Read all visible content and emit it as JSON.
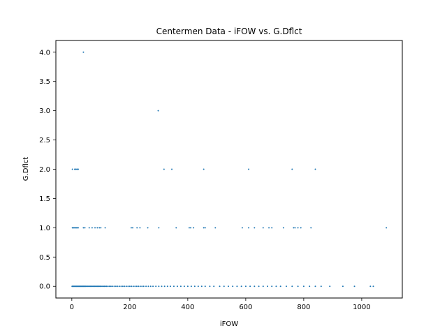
{
  "chart_data": {
    "type": "scatter",
    "title": "Centermen Data - iFOW vs. G.Dflct",
    "xlabel": "iFOW",
    "ylabel": "G.Dflct",
    "xlim": [
      -55,
      1140
    ],
    "ylim": [
      -0.2,
      4.2
    ],
    "xticks": [
      0,
      200,
      400,
      600,
      800,
      1000
    ],
    "yticks": [
      0.0,
      0.5,
      1.0,
      1.5,
      2.0,
      2.5,
      3.0,
      3.5,
      4.0
    ],
    "xtick_labels": [
      "0",
      "200",
      "400",
      "600",
      "800",
      "1000"
    ],
    "ytick_labels": [
      "0.0",
      "0.5",
      "1.0",
      "1.5",
      "2.0",
      "2.5",
      "3.0",
      "3.5",
      "4.0"
    ],
    "grid": false,
    "point_color": "#1f77b4",
    "series": [
      {
        "x": [
          1,
          3,
          5,
          7,
          9,
          11,
          13,
          15,
          17,
          19,
          21,
          23,
          25,
          27,
          29,
          31,
          33,
          35,
          37,
          39,
          41,
          43,
          45,
          47,
          49,
          52,
          55,
          58,
          61,
          64,
          67,
          70,
          73,
          76,
          79,
          82,
          85,
          88,
          91,
          94,
          97,
          100,
          104,
          108,
          112,
          116,
          120,
          125,
          130,
          135,
          140,
          146,
          152,
          158,
          164,
          170,
          176,
          182,
          188,
          194,
          200,
          206,
          212,
          218,
          224,
          230,
          236,
          242,
          248,
          256,
          264,
          272,
          280,
          290,
          300,
          310,
          320,
          330,
          340,
          352,
          364,
          376,
          388,
          400,
          412,
          424,
          436,
          448,
          460,
          476,
          490,
          510,
          525,
          540,
          555,
          570,
          585,
          600,
          615,
          630,
          645,
          660,
          675,
          690,
          705,
          720,
          740,
          760,
          780,
          800,
          820,
          840,
          860,
          890,
          935,
          975,
          1030,
          1040,
          2,
          5,
          8,
          12,
          15,
          18,
          22,
          40,
          45,
          60,
          70,
          80,
          88,
          95,
          100,
          115,
          205,
          210,
          225,
          235,
          262,
          300,
          360,
          405,
          410,
          420,
          455,
          460,
          495,
          588,
          610,
          630,
          660,
          680,
          690,
          730,
          765,
          770,
          780,
          790,
          825,
          1085,
          2,
          10,
          14,
          18,
          22,
          318,
          345,
          455,
          610,
          760,
          840,
          298,
          40
        ],
        "y": [
          0,
          0,
          0,
          0,
          0,
          0,
          0,
          0,
          0,
          0,
          0,
          0,
          0,
          0,
          0,
          0,
          0,
          0,
          0,
          0,
          0,
          0,
          0,
          0,
          0,
          0,
          0,
          0,
          0,
          0,
          0,
          0,
          0,
          0,
          0,
          0,
          0,
          0,
          0,
          0,
          0,
          0,
          0,
          0,
          0,
          0,
          0,
          0,
          0,
          0,
          0,
          0,
          0,
          0,
          0,
          0,
          0,
          0,
          0,
          0,
          0,
          0,
          0,
          0,
          0,
          0,
          0,
          0,
          0,
          0,
          0,
          0,
          0,
          0,
          0,
          0,
          0,
          0,
          0,
          0,
          0,
          0,
          0,
          0,
          0,
          0,
          0,
          0,
          0,
          0,
          0,
          0,
          0,
          0,
          0,
          0,
          0,
          0,
          0,
          0,
          0,
          0,
          0,
          0,
          0,
          0,
          0,
          0,
          0,
          0,
          0,
          0,
          0,
          0,
          0,
          0,
          0,
          0,
          1,
          1,
          1,
          1,
          1,
          1,
          1,
          1,
          1,
          1,
          1,
          1,
          1,
          1,
          1,
          1,
          1,
          1,
          1,
          1,
          1,
          1,
          1,
          1,
          1,
          1,
          1,
          1,
          1,
          1,
          1,
          1,
          1,
          1,
          1,
          1,
          1,
          1,
          1,
          1,
          1,
          1,
          2,
          2,
          2,
          2,
          2,
          2,
          2,
          2,
          2,
          2,
          2,
          3,
          4
        ]
      }
    ]
  }
}
